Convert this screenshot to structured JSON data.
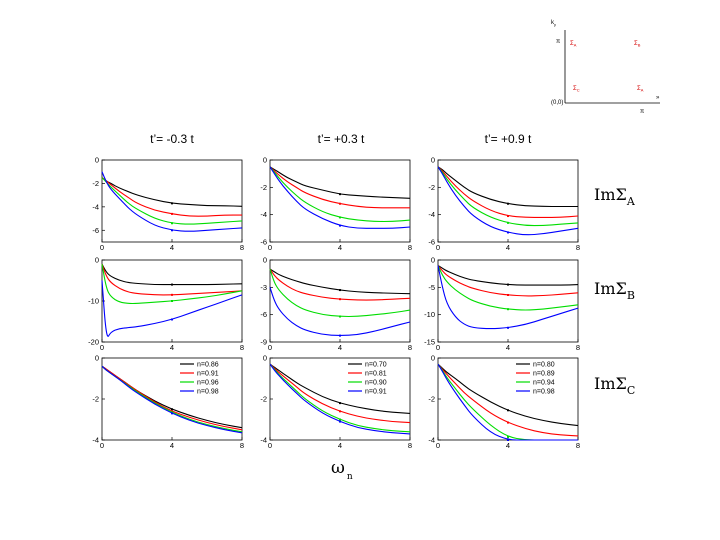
{
  "figure": {
    "column_titles": [
      "t’= -0.3 t",
      "t’= +0.3 t",
      "t’= +0.9 t"
    ],
    "row_labels": [
      {
        "main": "ImΣ",
        "sub": "A"
      },
      {
        "main": "ImΣ",
        "sub": "B"
      },
      {
        "main": "ImΣ",
        "sub": "C"
      }
    ],
    "xlabel": {
      "main": "ω",
      "sub": "n"
    }
  },
  "inset": {
    "axis_y": "k",
    "axis_y_sub": "y",
    "ytick": "π",
    "xtick": "π",
    "origin": "(0,0)",
    "arrow_x": "»",
    "points": [
      {
        "main": "Σ",
        "sub": "A"
      },
      {
        "main": "Σ",
        "sub": "B"
      },
      {
        "main": "Σ",
        "sub": "C"
      },
      {
        "main": "Σ",
        "sub": "A"
      }
    ]
  },
  "colors": {
    "black": "#000000",
    "red": "#ff0000",
    "green": "#00dd00",
    "blue": "#0000ff",
    "inset_red": "#d40000"
  },
  "chart_data": {
    "type": "line",
    "xlim": [
      0,
      8
    ],
    "xticks": [
      0,
      4,
      8
    ],
    "x": [
      0,
      0.25,
      0.5,
      1,
      1.5,
      2,
      3,
      4,
      5,
      6,
      7,
      8
    ],
    "panels": [
      {
        "row": "A",
        "col": 0,
        "ylim": [
          -7,
          0
        ],
        "yticks": [
          0,
          -2,
          -4,
          -6
        ],
        "series": [
          {
            "name": "n=0.86",
            "color": "black",
            "values": [
              -1.5,
              -1.8,
              -2.0,
              -2.4,
              -2.7,
              -3.0,
              -3.4,
              -3.7,
              -3.8,
              -3.9,
              -3.9,
              -3.95
            ]
          },
          {
            "name": "n=0.91",
            "color": "red",
            "values": [
              -1.5,
              -1.8,
              -2.1,
              -2.7,
              -3.2,
              -3.7,
              -4.3,
              -4.6,
              -4.8,
              -4.8,
              -4.7,
              -4.7
            ]
          },
          {
            "name": "n=0.96",
            "color": "green",
            "values": [
              -1.5,
              -1.9,
              -2.3,
              -3.0,
              -3.7,
              -4.2,
              -5.0,
              -5.4,
              -5.5,
              -5.4,
              -5.3,
              -5.2
            ]
          },
          {
            "name": "n=0.98",
            "color": "blue",
            "values": [
              -1.0,
              -1.9,
              -2.5,
              -3.3,
              -4.1,
              -4.7,
              -5.6,
              -6.0,
              -6.1,
              -6.0,
              -5.9,
              -5.8
            ]
          }
        ]
      },
      {
        "row": "A",
        "col": 1,
        "ylim": [
          -6,
          0
        ],
        "yticks": [
          0,
          -2,
          -4,
          -6
        ],
        "series": [
          {
            "name": "n=0.70",
            "color": "black",
            "values": [
              -0.5,
              -0.7,
              -0.9,
              -1.3,
              -1.6,
              -1.9,
              -2.2,
              -2.5,
              -2.6,
              -2.7,
              -2.75,
              -2.8
            ]
          },
          {
            "name": "n=0.81",
            "color": "red",
            "values": [
              -0.5,
              -0.8,
              -1.1,
              -1.6,
              -2.0,
              -2.4,
              -2.9,
              -3.2,
              -3.4,
              -3.5,
              -3.5,
              -3.5
            ]
          },
          {
            "name": "n=0.90",
            "color": "green",
            "values": [
              -0.5,
              -0.9,
              -1.3,
              -2.0,
              -2.6,
              -3.1,
              -3.8,
              -4.2,
              -4.4,
              -4.5,
              -4.5,
              -4.4
            ]
          },
          {
            "name": "n=0.91",
            "color": "blue",
            "values": [
              -0.5,
              -1.0,
              -1.5,
              -2.3,
              -3.0,
              -3.6,
              -4.3,
              -4.8,
              -5.0,
              -5.0,
              -5.0,
              -4.9
            ]
          }
        ]
      },
      {
        "row": "A",
        "col": 2,
        "ylim": [
          -6,
          0
        ],
        "yticks": [
          0,
          -2,
          -4,
          -6
        ],
        "series": [
          {
            "name": "n=0.80",
            "color": "black",
            "values": [
              -0.5,
              -0.7,
              -1.0,
              -1.5,
              -2.0,
              -2.4,
              -2.9,
              -3.2,
              -3.35,
              -3.4,
              -3.4,
              -3.4
            ]
          },
          {
            "name": "n=0.89",
            "color": "red",
            "values": [
              -0.5,
              -0.8,
              -1.2,
              -1.9,
              -2.5,
              -3.0,
              -3.7,
              -4.1,
              -4.2,
              -4.2,
              -4.2,
              -4.1
            ]
          },
          {
            "name": "n=0.94",
            "color": "green",
            "values": [
              -0.5,
              -0.9,
              -1.4,
              -2.2,
              -2.9,
              -3.5,
              -4.2,
              -4.6,
              -4.8,
              -4.8,
              -4.7,
              -4.6
            ]
          },
          {
            "name": "n=0.98",
            "color": "blue",
            "values": [
              -0.5,
              -1.0,
              -1.6,
              -2.6,
              -3.4,
              -4.1,
              -4.9,
              -5.3,
              -5.5,
              -5.4,
              -5.2,
              -5.0
            ]
          }
        ]
      },
      {
        "row": "B",
        "col": 0,
        "ylim": [
          -20,
          0
        ],
        "yticks": [
          0,
          -10,
          -20
        ],
        "series": [
          {
            "name": "n=0.86",
            "color": "black",
            "values": [
              -1,
              -3.0,
              -4.0,
              -5.0,
              -5.5,
              -5.7,
              -6.0,
              -6.0,
              -6.0,
              -6.0,
              -5.9,
              -5.8
            ]
          },
          {
            "name": "n=0.91",
            "color": "red",
            "values": [
              -1,
              -4.0,
              -5.5,
              -7.0,
              -7.8,
              -8.2,
              -8.5,
              -8.5,
              -8.3,
              -8.0,
              -7.8,
              -7.5
            ]
          },
          {
            "name": "n=0.96",
            "color": "green",
            "values": [
              -1,
              -7.0,
              -9.0,
              -10.3,
              -10.6,
              -10.6,
              -10.3,
              -10.0,
              -9.5,
              -9.0,
              -8.3,
              -7.5
            ]
          },
          {
            "name": "n=0.98",
            "color": "blue",
            "values": [
              -5,
              -19.5,
              -17.5,
              -16.7,
              -16.5,
              -16.3,
              -15.5,
              -14.5,
              -13.0,
              -11.5,
              -10.0,
              -8.5
            ]
          }
        ]
      },
      {
        "row": "B",
        "col": 1,
        "ylim": [
          -9,
          0
        ],
        "yticks": [
          0,
          -3,
          -6,
          -9
        ],
        "series": [
          {
            "name": "n=0.70",
            "color": "black",
            "values": [
              -1,
              -1.3,
              -1.6,
              -2.0,
              -2.3,
              -2.6,
              -3.0,
              -3.3,
              -3.5,
              -3.6,
              -3.65,
              -3.7
            ]
          },
          {
            "name": "n=0.81",
            "color": "red",
            "values": [
              -1,
              -1.7,
              -2.2,
              -2.9,
              -3.4,
              -3.7,
              -4.1,
              -4.3,
              -4.4,
              -4.4,
              -4.3,
              -4.2
            ]
          },
          {
            "name": "n=0.90",
            "color": "green",
            "values": [
              -1,
              -2.5,
              -3.3,
              -4.3,
              -5.0,
              -5.5,
              -6.0,
              -6.2,
              -6.2,
              -6.0,
              -5.8,
              -5.5
            ]
          },
          {
            "name": "n=0.91",
            "color": "blue",
            "values": [
              -3,
              -4.5,
              -5.4,
              -6.5,
              -7.2,
              -7.7,
              -8.2,
              -8.3,
              -8.2,
              -7.8,
              -7.3,
              -6.8
            ]
          }
        ]
      },
      {
        "row": "B",
        "col": 2,
        "ylim": [
          -15,
          0
        ],
        "yticks": [
          0,
          -5,
          -10,
          -15
        ],
        "series": [
          {
            "name": "n=0.80",
            "color": "black",
            "values": [
              -1,
              -1.5,
              -2.0,
              -2.7,
              -3.3,
              -3.7,
              -4.2,
              -4.5,
              -4.6,
              -4.6,
              -4.6,
              -4.5
            ]
          },
          {
            "name": "n=0.89",
            "color": "red",
            "values": [
              -1,
              -2.0,
              -2.8,
              -3.8,
              -4.6,
              -5.2,
              -6.0,
              -6.4,
              -6.6,
              -6.5,
              -6.3,
              -6.0
            ]
          },
          {
            "name": "n=0.94",
            "color": "green",
            "values": [
              -1,
              -2.8,
              -4.0,
              -5.5,
              -6.6,
              -7.5,
              -8.5,
              -9.0,
              -9.2,
              -9.0,
              -8.6,
              -8.2
            ]
          },
          {
            "name": "n=0.98",
            "color": "blue",
            "values": [
              -1,
              -5.0,
              -8.0,
              -10.5,
              -11.8,
              -12.4,
              -12.6,
              -12.4,
              -11.8,
              -10.8,
              -9.8,
              -8.8
            ]
          }
        ]
      },
      {
        "row": "C",
        "col": 0,
        "ylim": [
          -4,
          0
        ],
        "yticks": [
          0,
          -2,
          -4
        ],
        "legend": true,
        "series": [
          {
            "name": "n=0.86",
            "color": "black",
            "values": [
              -0.4,
              -0.55,
              -0.7,
              -1.0,
              -1.3,
              -1.6,
              -2.1,
              -2.5,
              -2.8,
              -3.05,
              -3.25,
              -3.4
            ]
          },
          {
            "name": "n=0.91",
            "color": "red",
            "values": [
              -0.4,
              -0.55,
              -0.7,
              -1.0,
              -1.3,
              -1.6,
              -2.15,
              -2.6,
              -2.9,
              -3.15,
              -3.35,
              -3.5
            ]
          },
          {
            "name": "n=0.96",
            "color": "green",
            "values": [
              -0.4,
              -0.6,
              -0.75,
              -1.05,
              -1.35,
              -1.65,
              -2.2,
              -2.65,
              -3.0,
              -3.25,
              -3.45,
              -3.6
            ]
          },
          {
            "name": "n=0.98",
            "color": "blue",
            "values": [
              -0.4,
              -0.6,
              -0.75,
              -1.05,
              -1.4,
              -1.7,
              -2.25,
              -2.7,
              -3.05,
              -3.3,
              -3.5,
              -3.65
            ]
          }
        ]
      },
      {
        "row": "C",
        "col": 1,
        "ylim": [
          -4,
          0
        ],
        "yticks": [
          0,
          -2,
          -4
        ],
        "legend": true,
        "series": [
          {
            "name": "n=0.70",
            "color": "black",
            "values": [
              -0.3,
              -0.45,
              -0.6,
              -0.9,
              -1.2,
              -1.45,
              -1.9,
              -2.2,
              -2.4,
              -2.55,
              -2.65,
              -2.7
            ]
          },
          {
            "name": "n=0.81",
            "color": "red",
            "values": [
              -0.3,
              -0.5,
              -0.7,
              -1.05,
              -1.4,
              -1.75,
              -2.25,
              -2.6,
              -2.85,
              -3.0,
              -3.1,
              -3.15
            ]
          },
          {
            "name": "n=0.90",
            "color": "green",
            "values": [
              -0.3,
              -0.55,
              -0.8,
              -1.2,
              -1.6,
              -2.0,
              -2.6,
              -3.0,
              -3.3,
              -3.45,
              -3.55,
              -3.6
            ]
          },
          {
            "name": "n=0.91",
            "color": "blue",
            "values": [
              -0.3,
              -0.6,
              -0.85,
              -1.3,
              -1.7,
              -2.1,
              -2.7,
              -3.1,
              -3.4,
              -3.55,
              -3.65,
              -3.7
            ]
          }
        ]
      },
      {
        "row": "C",
        "col": 2,
        "ylim": [
          -4,
          0
        ],
        "yticks": [
          0,
          -2,
          -4
        ],
        "legend": true,
        "series": [
          {
            "name": "n=0.80",
            "color": "black",
            "values": [
              -0.3,
              -0.5,
              -0.7,
              -1.0,
              -1.35,
              -1.65,
              -2.15,
              -2.55,
              -2.85,
              -3.05,
              -3.2,
              -3.3
            ]
          },
          {
            "name": "n=0.89",
            "color": "red",
            "values": [
              -0.3,
              -0.55,
              -0.8,
              -1.25,
              -1.7,
              -2.05,
              -2.7,
              -3.15,
              -3.45,
              -3.65,
              -3.75,
              -3.8
            ]
          },
          {
            "name": "n=0.94",
            "color": "green",
            "values": [
              -0.3,
              -0.6,
              -0.95,
              -1.5,
              -2.05,
              -2.5,
              -3.3,
              -3.85,
              -4.1,
              -4.2,
              -4.2,
              -4.2
            ]
          },
          {
            "name": "n=0.98",
            "color": "blue",
            "values": [
              -0.3,
              -0.65,
              -1.05,
              -1.7,
              -2.3,
              -2.85,
              -3.65,
              -4.2,
              -4.5,
              -4.5,
              -4.5,
              -4.5
            ]
          }
        ]
      }
    ]
  }
}
